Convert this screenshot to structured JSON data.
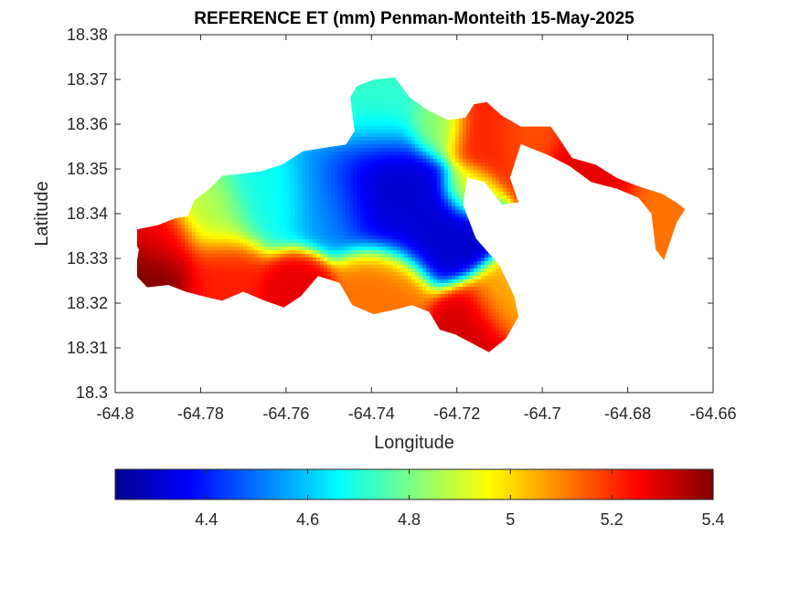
{
  "chart_data": {
    "type": "heatmap",
    "title": "REFERENCE ET (mm) Penman-Monteith 15-May-2025",
    "xlabel": "Longitude",
    "ylabel": "Latitude",
    "xlim": [
      -64.8,
      -64.66
    ],
    "ylim": [
      18.3,
      18.38
    ],
    "x_ticks": [
      -64.8,
      -64.78,
      -64.76,
      -64.74,
      -64.72,
      -64.7,
      -64.68,
      -64.66
    ],
    "x_tick_labels": [
      "-64.8",
      "-64.78",
      "-64.76",
      "-64.74",
      "-64.72",
      "-64.7",
      "-64.68",
      "-64.66"
    ],
    "y_ticks": [
      18.3,
      18.31,
      18.32,
      18.33,
      18.34,
      18.35,
      18.36,
      18.37,
      18.38
    ],
    "y_tick_labels": [
      "18.3",
      "18.31",
      "18.32",
      "18.33",
      "18.34",
      "18.35",
      "18.36",
      "18.37",
      "18.38"
    ],
    "grid": false,
    "colormap": "jet",
    "colorbar": {
      "position": "bottom",
      "clim": [
        4.22,
        5.4
      ],
      "ticks": [
        4.4,
        4.6,
        4.8,
        5.0,
        5.2,
        5.4
      ],
      "tick_labels": [
        "4.4",
        "4.6",
        "4.8",
        "5",
        "5.2",
        "5.4"
      ]
    },
    "colormap_stops": [
      "#00008f",
      "#0000ff",
      "#00ffff",
      "#ffff00",
      "#ff0000",
      "#800000"
    ],
    "boundary_lonlat": [
      [
        -64.795,
        18.3365
      ],
      [
        -64.79,
        18.3375
      ],
      [
        -64.786,
        18.339
      ],
      [
        -64.783,
        18.3395
      ],
      [
        -64.7815,
        18.343
      ],
      [
        -64.778,
        18.3455
      ],
      [
        -64.775,
        18.3485
      ],
      [
        -64.77,
        18.349
      ],
      [
        -64.766,
        18.3495
      ],
      [
        -64.761,
        18.351
      ],
      [
        -64.756,
        18.354
      ],
      [
        -64.7495,
        18.355
      ],
      [
        -64.746,
        18.3555
      ],
      [
        -64.744,
        18.3585
      ],
      [
        -64.745,
        18.366
      ],
      [
        -64.7435,
        18.3685
      ],
      [
        -64.7395,
        18.37
      ],
      [
        -64.7345,
        18.3705
      ],
      [
        -64.731,
        18.366
      ],
      [
        -64.7265,
        18.363
      ],
      [
        -64.722,
        18.361
      ],
      [
        -64.718,
        18.3615
      ],
      [
        -64.716,
        18.3645
      ],
      [
        -64.713,
        18.365
      ],
      [
        -64.7095,
        18.362
      ],
      [
        -64.705,
        18.3595
      ],
      [
        -64.698,
        18.3595
      ],
      [
        -64.6965,
        18.3575
      ],
      [
        -64.693,
        18.3525
      ],
      [
        -64.6875,
        18.351
      ],
      [
        -64.6825,
        18.348
      ],
      [
        -64.677,
        18.346
      ],
      [
        -64.672,
        18.3445
      ],
      [
        -64.6685,
        18.3425
      ],
      [
        -64.6665,
        18.341
      ],
      [
        -64.6685,
        18.338
      ],
      [
        -64.6715,
        18.3295
      ],
      [
        -64.6735,
        18.332
      ],
      [
        -64.6745,
        18.34
      ],
      [
        -64.6775,
        18.3435
      ],
      [
        -64.6825,
        18.3455
      ],
      [
        -64.6885,
        18.347
      ],
      [
        -64.6935,
        18.3505
      ],
      [
        -64.6985,
        18.353
      ],
      [
        -64.7025,
        18.3545
      ],
      [
        -64.705,
        18.3555
      ],
      [
        -64.7075,
        18.348
      ],
      [
        -64.7055,
        18.3425
      ],
      [
        -64.7095,
        18.342
      ],
      [
        -64.7135,
        18.347
      ],
      [
        -64.7175,
        18.348
      ],
      [
        -64.7185,
        18.342
      ],
      [
        -64.7155,
        18.3345
      ],
      [
        -64.71,
        18.3285
      ],
      [
        -64.7065,
        18.3215
      ],
      [
        -64.7055,
        18.317
      ],
      [
        -64.7085,
        18.312
      ],
      [
        -64.7125,
        18.309
      ],
      [
        -64.7165,
        18.311
      ],
      [
        -64.7205,
        18.313
      ],
      [
        -64.724,
        18.314
      ],
      [
        -64.7265,
        18.318
      ],
      [
        -64.7305,
        18.3195
      ],
      [
        -64.7345,
        18.3185
      ],
      [
        -64.7395,
        18.3175
      ],
      [
        -64.7445,
        18.3195
      ],
      [
        -64.7475,
        18.3245
      ],
      [
        -64.7525,
        18.326
      ],
      [
        -64.7565,
        18.3215
      ],
      [
        -64.7605,
        18.319
      ],
      [
        -64.765,
        18.3205
      ],
      [
        -64.77,
        18.3225
      ],
      [
        -64.775,
        18.3205
      ],
      [
        -64.7795,
        18.3215
      ],
      [
        -64.7835,
        18.3225
      ],
      [
        -64.7875,
        18.324
      ],
      [
        -64.7925,
        18.3235
      ],
      [
        -64.7955,
        18.3265
      ],
      [
        -64.7945,
        18.332
      ],
      [
        -64.7965,
        18.3355
      ]
    ],
    "field_hotspots": [
      {
        "lon": -64.7405,
        "lat": 18.3485,
        "value": 4.22,
        "spread": 0.0058
      },
      {
        "lon": -64.732,
        "lat": 18.342,
        "value": 4.32,
        "spread": 0.0062
      },
      {
        "lon": -64.7225,
        "lat": 18.3355,
        "value": 4.3,
        "spread": 0.0048
      },
      {
        "lon": -64.7485,
        "lat": 18.3455,
        "value": 4.55,
        "spread": 0.0062
      },
      {
        "lon": -64.741,
        "lat": 18.3615,
        "value": 4.72,
        "spread": 0.0065
      },
      {
        "lon": -64.7655,
        "lat": 18.3445,
        "value": 4.68,
        "spread": 0.0055
      },
      {
        "lon": -64.7775,
        "lat": 18.34,
        "value": 4.88,
        "spread": 0.005
      },
      {
        "lon": -64.7905,
        "lat": 18.326,
        "value": 5.4,
        "spread": 0.0048
      },
      {
        "lon": -64.7885,
        "lat": 18.334,
        "value": 5.26,
        "spread": 0.004
      },
      {
        "lon": -64.7755,
        "lat": 18.326,
        "value": 5.22,
        "spread": 0.005
      },
      {
        "lon": -64.7575,
        "lat": 18.3225,
        "value": 5.28,
        "spread": 0.004
      },
      {
        "lon": -64.7375,
        "lat": 18.3225,
        "value": 5.12,
        "spread": 0.005
      },
      {
        "lon": -64.7165,
        "lat": 18.3145,
        "value": 5.3,
        "spread": 0.0045
      },
      {
        "lon": -64.7085,
        "lat": 18.3205,
        "value": 5.05,
        "spread": 0.004
      },
      {
        "lon": -64.7135,
        "lat": 18.3575,
        "value": 5.22,
        "spread": 0.0048
      },
      {
        "lon": -64.7045,
        "lat": 18.358,
        "value": 5.16,
        "spread": 0.0045
      },
      {
        "lon": -64.6885,
        "lat": 18.348,
        "value": 5.28,
        "spread": 0.0055
      },
      {
        "lon": -64.672,
        "lat": 18.34,
        "value": 5.12,
        "spread": 0.005
      },
      {
        "lon": -64.7175,
        "lat": 18.345,
        "value": 4.95,
        "spread": 0.003
      },
      {
        "lon": -64.7245,
        "lat": 18.3595,
        "value": 4.82,
        "spread": 0.0035
      }
    ]
  }
}
